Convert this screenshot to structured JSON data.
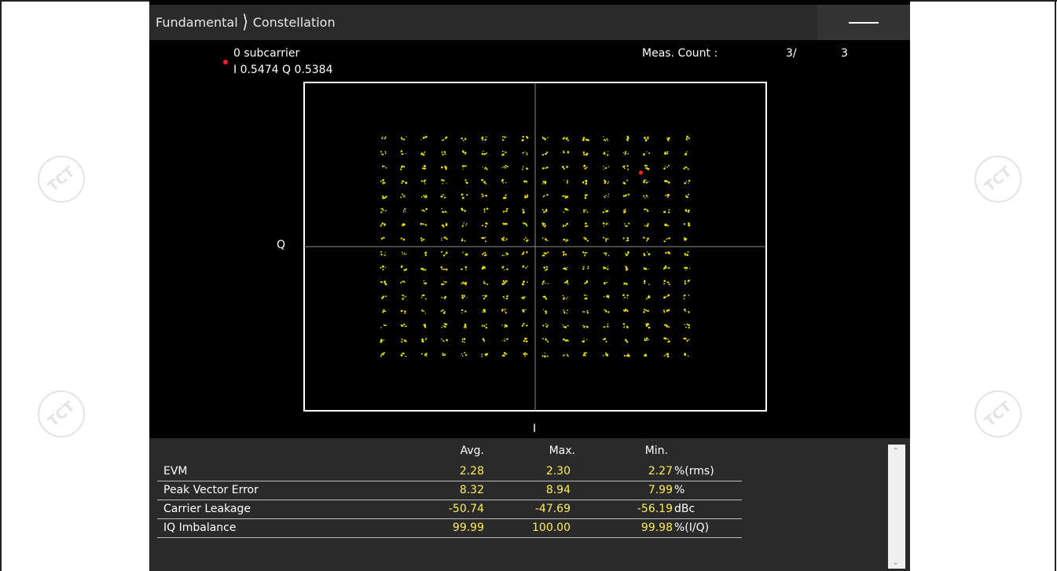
{
  "breadcrumb": {
    "parent": "Fundamental",
    "current": "Constellation"
  },
  "marker": {
    "label": "0 subcarrier",
    "value": "I 0.5474 Q 0.5384",
    "color": "#ff2020"
  },
  "meas": {
    "label": "Meas. Count :",
    "current": "3/",
    "total": "3"
  },
  "chart_data": {
    "type": "scatter",
    "xlabel": "I",
    "ylabel": "Q",
    "xlim": [
      -1.2,
      1.2
    ],
    "ylim": [
      -1.2,
      1.2
    ],
    "grid": "center-crosshair",
    "point_color": "#e8e000",
    "constellation_order": 256,
    "grid_levels": [
      -0.7854,
      -0.6807,
      -0.576,
      -0.4713,
      -0.3665,
      -0.2618,
      -0.1571,
      -0.0524,
      0.0524,
      0.1571,
      0.2618,
      0.3665,
      0.4713,
      0.576,
      0.6807,
      0.7854
    ],
    "marker_point": {
      "i": 0.5474,
      "q": 0.5384
    }
  },
  "results": {
    "headers": {
      "avg": "Avg.",
      "max": "Max.",
      "min": "Min."
    },
    "rows": [
      {
        "label": "EVM",
        "avg": "2.28",
        "max": "2.30",
        "min": "2.27",
        "unit": "%(rms)"
      },
      {
        "label": "Peak Vector Error",
        "avg": "8.32",
        "max": "8.94",
        "min": "7.99",
        "unit": "%"
      },
      {
        "label": "Carrier Leakage",
        "avg": "-50.74",
        "max": "-47.69",
        "min": "-56.19",
        "unit": "dBc"
      },
      {
        "label": "IQ Imbalance",
        "avg": "99.99",
        "max": "100.00",
        "min": "99.98",
        "unit": "%(I/Q)"
      }
    ]
  },
  "watermark": {
    "text": "TCT"
  },
  "colors": {
    "panel_bg": "#000000",
    "value_yellow": "#ffee55",
    "bar_bg": "#2a2a2a"
  }
}
